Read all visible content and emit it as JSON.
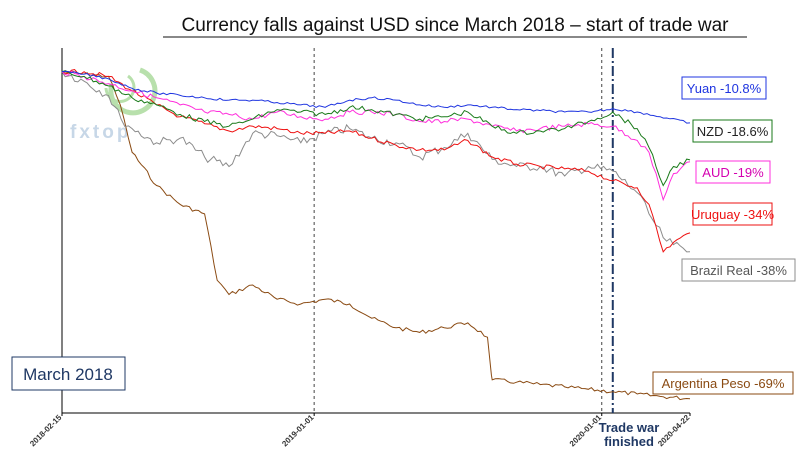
{
  "title": "Currency falls against USD since March 2018 – start of trade war",
  "watermark": "fxtop",
  "start_box": "March 2018",
  "event_label": {
    "line1": "Trade war",
    "line2": "finished"
  },
  "colors": {
    "Yuan": "#1f35e0",
    "NZD": "#1a7a1a",
    "AUD": "#ff2fdc",
    "Uruguay": "#ee1111",
    "Brazil Real": "#8c8c8c",
    "Argentina Peso": "#8a4a12",
    "event_line": "#1F3864",
    "watermark": "#7fc86a"
  },
  "chart_data": {
    "type": "line",
    "title": "Currency falls against USD since March 2018 – start of trade war",
    "x_ticks": [
      "2018-02-15",
      "2019-01-01",
      "2020-01-01",
      "2020-04-22"
    ],
    "x_range": [
      "2018-02-15",
      "2020-04-22"
    ],
    "y_range": [
      0.28,
      1.05
    ],
    "y_axis_labels_shown": false,
    "grid": false,
    "vertical_markers": [
      {
        "date": "2019-01-01",
        "style": "dashed"
      },
      {
        "date": "2020-01-01",
        "style": "dashed"
      },
      {
        "date": "2020-01-15",
        "style": "dash-dot",
        "label": "Trade war finished"
      }
    ],
    "series": [
      {
        "name": "Yuan",
        "label": "Yuan -10.8%",
        "x": [
          "2018-02-15",
          "2018-03-15",
          "2018-04-15",
          "2018-05-15",
          "2018-06-15",
          "2018-07-15",
          "2018-08-15",
          "2018-09-15",
          "2018-10-15",
          "2018-11-15",
          "2018-12-15",
          "2019-01-15",
          "2019-02-15",
          "2019-03-15",
          "2019-04-15",
          "2019-05-15",
          "2019-06-15",
          "2019-07-15",
          "2019-08-15",
          "2019-09-15",
          "2019-10-15",
          "2019-11-15",
          "2019-12-15",
          "2020-01-15",
          "2020-02-15",
          "2020-03-15",
          "2020-04-22"
        ],
        "y": [
          1.0,
          0.995,
          0.985,
          0.965,
          0.955,
          0.95,
          0.945,
          0.94,
          0.94,
          0.935,
          0.93,
          0.925,
          0.94,
          0.945,
          0.94,
          0.93,
          0.925,
          0.93,
          0.925,
          0.92,
          0.918,
          0.915,
          0.915,
          0.922,
          0.915,
          0.905,
          0.892
        ]
      },
      {
        "name": "NZD",
        "label": "NZD -18.6%",
        "x": [
          "2018-02-15",
          "2018-03-15",
          "2018-04-15",
          "2018-05-15",
          "2018-06-15",
          "2018-07-15",
          "2018-08-15",
          "2018-09-15",
          "2018-10-15",
          "2018-11-15",
          "2018-12-15",
          "2019-01-15",
          "2019-02-15",
          "2019-03-15",
          "2019-04-15",
          "2019-05-15",
          "2019-06-15",
          "2019-07-15",
          "2019-08-15",
          "2019-09-15",
          "2019-10-15",
          "2019-11-15",
          "2019-12-15",
          "2020-01-15",
          "2020-02-15",
          "2020-03-01",
          "2020-03-19",
          "2020-04-01",
          "2020-04-22"
        ],
        "y": [
          1.0,
          0.99,
          0.97,
          0.945,
          0.93,
          0.91,
          0.895,
          0.885,
          0.9,
          0.92,
          0.915,
          0.91,
          0.925,
          0.92,
          0.91,
          0.9,
          0.905,
          0.915,
          0.885,
          0.87,
          0.875,
          0.88,
          0.895,
          0.915,
          0.88,
          0.84,
          0.76,
          0.8,
          0.814
        ]
      },
      {
        "name": "AUD",
        "label": "AUD -19%",
        "x": [
          "2018-02-15",
          "2018-03-15",
          "2018-04-15",
          "2018-05-15",
          "2018-06-15",
          "2018-07-15",
          "2018-08-15",
          "2018-09-15",
          "2018-10-15",
          "2018-11-15",
          "2018-12-15",
          "2019-01-15",
          "2019-02-15",
          "2019-03-15",
          "2019-04-15",
          "2019-05-15",
          "2019-06-15",
          "2019-07-15",
          "2019-08-15",
          "2019-09-15",
          "2019-10-15",
          "2019-11-15",
          "2019-12-15",
          "2020-01-15",
          "2020-02-15",
          "2020-03-01",
          "2020-03-19",
          "2020-04-01",
          "2020-04-22"
        ],
        "y": [
          1.0,
          0.99,
          0.975,
          0.96,
          0.945,
          0.93,
          0.915,
          0.91,
          0.9,
          0.915,
          0.905,
          0.9,
          0.915,
          0.915,
          0.91,
          0.895,
          0.895,
          0.9,
          0.885,
          0.875,
          0.88,
          0.885,
          0.89,
          0.885,
          0.855,
          0.83,
          0.73,
          0.785,
          0.81
        ]
      },
      {
        "name": "Uruguay",
        "label": "Uruguay -34%",
        "x": [
          "2018-02-15",
          "2018-03-15",
          "2018-04-15",
          "2018-05-15",
          "2018-06-15",
          "2018-07-15",
          "2018-08-15",
          "2018-09-15",
          "2018-10-15",
          "2018-11-15",
          "2018-12-15",
          "2019-01-15",
          "2019-02-15",
          "2019-03-15",
          "2019-04-15",
          "2019-05-15",
          "2019-06-15",
          "2019-07-15",
          "2019-08-15",
          "2019-09-15",
          "2019-10-15",
          "2019-11-15",
          "2019-12-15",
          "2020-01-15",
          "2020-02-15",
          "2020-03-01",
          "2020-03-19",
          "2020-04-01",
          "2020-04-22"
        ],
        "y": [
          1.0,
          1.0,
          0.99,
          0.96,
          0.93,
          0.905,
          0.89,
          0.875,
          0.885,
          0.88,
          0.87,
          0.87,
          0.875,
          0.86,
          0.845,
          0.835,
          0.835,
          0.855,
          0.82,
          0.805,
          0.8,
          0.795,
          0.79,
          0.77,
          0.755,
          0.72,
          0.62,
          0.64,
          0.66
        ]
      },
      {
        "name": "Brazil Real",
        "label": "Brazil Real -38%",
        "x": [
          "2018-02-15",
          "2018-03-15",
          "2018-04-15",
          "2018-05-01",
          "2018-05-15",
          "2018-06-15",
          "2018-07-15",
          "2018-08-15",
          "2018-09-15",
          "2018-10-15",
          "2018-11-15",
          "2018-12-15",
          "2019-01-15",
          "2019-02-15",
          "2019-03-15",
          "2019-04-15",
          "2019-05-15",
          "2019-06-15",
          "2019-07-15",
          "2019-08-15",
          "2019-09-15",
          "2019-10-15",
          "2019-11-15",
          "2019-12-15",
          "2020-01-15",
          "2020-02-15",
          "2020-03-01",
          "2020-03-19",
          "2020-04-01",
          "2020-04-22"
        ],
        "y": [
          1.0,
          0.98,
          0.95,
          0.9,
          0.88,
          0.85,
          0.86,
          0.82,
          0.8,
          0.87,
          0.865,
          0.85,
          0.87,
          0.88,
          0.86,
          0.85,
          0.82,
          0.84,
          0.87,
          0.815,
          0.8,
          0.8,
          0.78,
          0.8,
          0.79,
          0.745,
          0.7,
          0.65,
          0.635,
          0.62
        ]
      },
      {
        "name": "Argentina Peso",
        "label": "Argentina Peso -69%",
        "x": [
          "2018-02-15",
          "2018-03-15",
          "2018-04-15",
          "2018-04-30",
          "2018-05-15",
          "2018-06-15",
          "2018-07-15",
          "2018-08-15",
          "2018-08-31",
          "2018-09-15",
          "2018-10-15",
          "2018-11-15",
          "2018-12-15",
          "2019-01-15",
          "2019-02-15",
          "2019-03-15",
          "2019-04-15",
          "2019-05-15",
          "2019-06-15",
          "2019-07-15",
          "2019-08-09",
          "2019-08-14",
          "2019-08-15",
          "2019-09-15",
          "2019-10-15",
          "2019-11-15",
          "2019-12-15",
          "2020-01-15",
          "2020-02-15",
          "2020-03-15",
          "2020-04-22"
        ],
        "y": [
          1.0,
          0.995,
          0.99,
          0.93,
          0.83,
          0.76,
          0.72,
          0.7,
          0.56,
          0.53,
          0.55,
          0.52,
          0.51,
          0.52,
          0.51,
          0.48,
          0.46,
          0.45,
          0.46,
          0.47,
          0.44,
          0.36,
          0.35,
          0.345,
          0.34,
          0.335,
          0.33,
          0.325,
          0.32,
          0.315,
          0.31
        ]
      }
    ]
  }
}
